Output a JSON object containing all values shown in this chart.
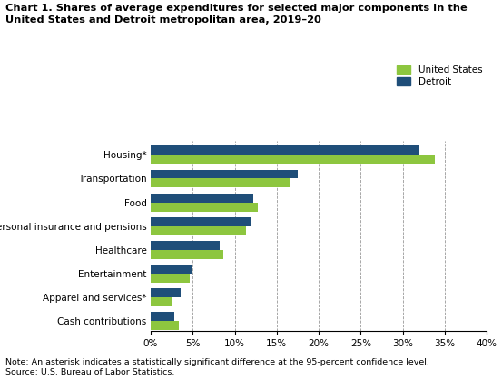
{
  "title_line1": "Chart 1. Shares of average expenditures for selected major components in the",
  "title_line2": "United States and Detroit metropolitan area, 2019–20",
  "categories": [
    "Housing*",
    "Transportation",
    "Food",
    "Personal insurance and pensions",
    "Healthcare",
    "Entertainment",
    "Apparel and services*",
    "Cash contributions"
  ],
  "us_values": [
    33.8,
    16.5,
    12.8,
    11.3,
    8.7,
    4.6,
    2.6,
    3.4
  ],
  "detroit_values": [
    32.0,
    17.5,
    12.2,
    12.0,
    8.2,
    4.9,
    3.6,
    2.8
  ],
  "us_color": "#8dc63f",
  "detroit_color": "#1f4e79",
  "legend_labels": [
    "United States",
    "Detroit"
  ],
  "xlim": [
    0,
    40
  ],
  "xtick_values": [
    0,
    5,
    10,
    15,
    20,
    25,
    30,
    35,
    40
  ],
  "xtick_labels": [
    "0%",
    "5%",
    "10%",
    "15%",
    "20%",
    "25%",
    "30%",
    "35%",
    "40%"
  ],
  "note": "Note: An asterisk indicates a statistically significant difference at the 95-percent confidence level.",
  "source": "Source: U.S. Bureau of Labor Statistics.",
  "background_color": "#ffffff",
  "grid_color": "#999999"
}
